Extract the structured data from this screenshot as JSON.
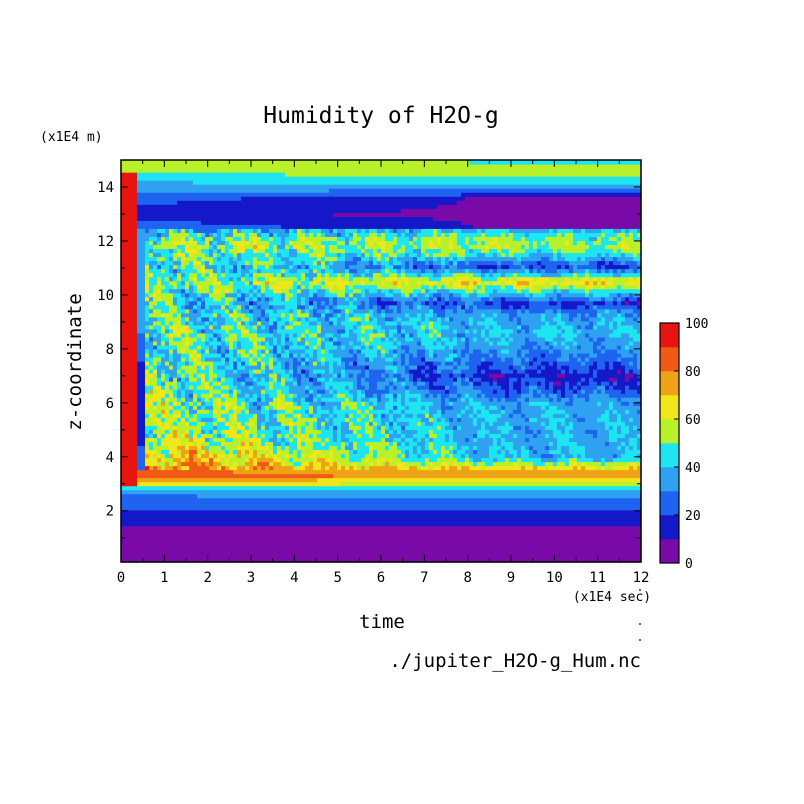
{
  "chart_data": {
    "type": "heatmap",
    "title": "Humidity of H2O-g",
    "xlabel": "time",
    "ylabel": "z-coordinate",
    "x_unit": "(x1E4 sec)",
    "y_unit": "(x1E4 m)",
    "source": "./jupiter_H2O-g_Hum.nc",
    "xlim": [
      0,
      12
    ],
    "ylim": [
      0.1,
      15
    ],
    "x_ticks": [
      "0",
      "1",
      "2",
      "3",
      "4",
      "5",
      "6",
      "7",
      "8",
      "9",
      "10",
      "11",
      "12"
    ],
    "y_ticks": [
      "2",
      "4",
      "6",
      "8",
      "10",
      "12",
      "14"
    ],
    "colorbar": {
      "ticks": [
        "0",
        "20",
        "40",
        "60",
        "80",
        "100"
      ],
      "range": [
        0,
        100
      ],
      "levels": [
        0,
        10,
        20,
        30,
        40,
        50,
        60,
        70,
        80,
        90,
        100
      ],
      "colors": [
        "#7a0aa8",
        "#1418c8",
        "#1e64f0",
        "#2ea2f0",
        "#1ee6f0",
        "#b8f02a",
        "#f0e61a",
        "#f0a216",
        "#f05a14",
        "#e81410",
        "#f8b8b8"
      ]
    },
    "profiles": {
      "early": [
        [
          0.1,
          5
        ],
        [
          1.2,
          5
        ],
        [
          1.5,
          12
        ],
        [
          2.2,
          22
        ],
        [
          2.8,
          35
        ],
        [
          3.0,
          70
        ],
        [
          3.3,
          85
        ],
        [
          3.6,
          80
        ],
        [
          5,
          55
        ],
        [
          8,
          50
        ],
        [
          10,
          45
        ],
        [
          12,
          55
        ],
        [
          12.5,
          30
        ],
        [
          13,
          12
        ],
        [
          14,
          35
        ],
        [
          15,
          60
        ]
      ],
      "late": [
        [
          0.1,
          5
        ],
        [
          1.3,
          5
        ],
        [
          1.5,
          12
        ],
        [
          2.2,
          22
        ],
        [
          2.6,
          32
        ],
        [
          2.9,
          45
        ],
        [
          3.15,
          62
        ],
        [
          3.35,
          80
        ],
        [
          3.6,
          65
        ],
        [
          3.85,
          45
        ],
        [
          4.0,
          38
        ],
        [
          6.0,
          36
        ],
        [
          6.4,
          25
        ],
        [
          7.0,
          15
        ],
        [
          7.6,
          26
        ],
        [
          8.6,
          40
        ],
        [
          9.3,
          34
        ],
        [
          9.7,
          18
        ],
        [
          10.1,
          42
        ],
        [
          10.5,
          68
        ],
        [
          10.8,
          40
        ],
        [
          11.1,
          20
        ],
        [
          11.4,
          40
        ],
        [
          11.8,
          55
        ],
        [
          12.2,
          48
        ],
        [
          12.4,
          40
        ],
        [
          12.5,
          8
        ],
        [
          13.6,
          8
        ],
        [
          13.75,
          20
        ],
        [
          14.0,
          35
        ],
        [
          14.5,
          55
        ],
        [
          15,
          48
        ]
      ]
    }
  }
}
